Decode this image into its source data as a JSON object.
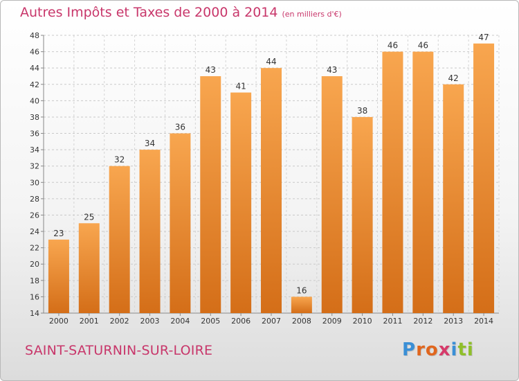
{
  "title": "Autres Impôts et Taxes de 2000 à 2014",
  "subtitle": "(en milliers d'€)",
  "commune": "SAINT-SATURNIN-SUR-LOIRE",
  "logo": {
    "letters": [
      "P",
      "r",
      "o",
      "x",
      "i",
      "t",
      "i"
    ],
    "colors": [
      "#3a8fd6",
      "#e0661e",
      "#e0661e",
      "#d63a6a",
      "#3a8fd6",
      "#8fbf2a",
      "#8fbf2a"
    ]
  },
  "colors": {
    "bar_light": "#f8a64f",
    "bar_dark": "#d46e18",
    "accent": "#c8366a"
  },
  "chart_data": {
    "type": "bar",
    "categories": [
      "2000",
      "2001",
      "2002",
      "2003",
      "2004",
      "2005",
      "2006",
      "2007",
      "2008",
      "2009",
      "2010",
      "2011",
      "2012",
      "2013",
      "2014"
    ],
    "values": [
      23,
      25,
      32,
      34,
      36,
      43,
      41,
      44,
      16,
      43,
      38,
      46,
      46,
      42,
      47
    ],
    "ylim": [
      14,
      48
    ],
    "yticks": [
      14,
      16,
      18,
      20,
      22,
      24,
      26,
      28,
      30,
      32,
      34,
      36,
      38,
      40,
      42,
      44,
      46,
      48
    ],
    "grid": true,
    "xlabel": "",
    "ylabel": ""
  }
}
